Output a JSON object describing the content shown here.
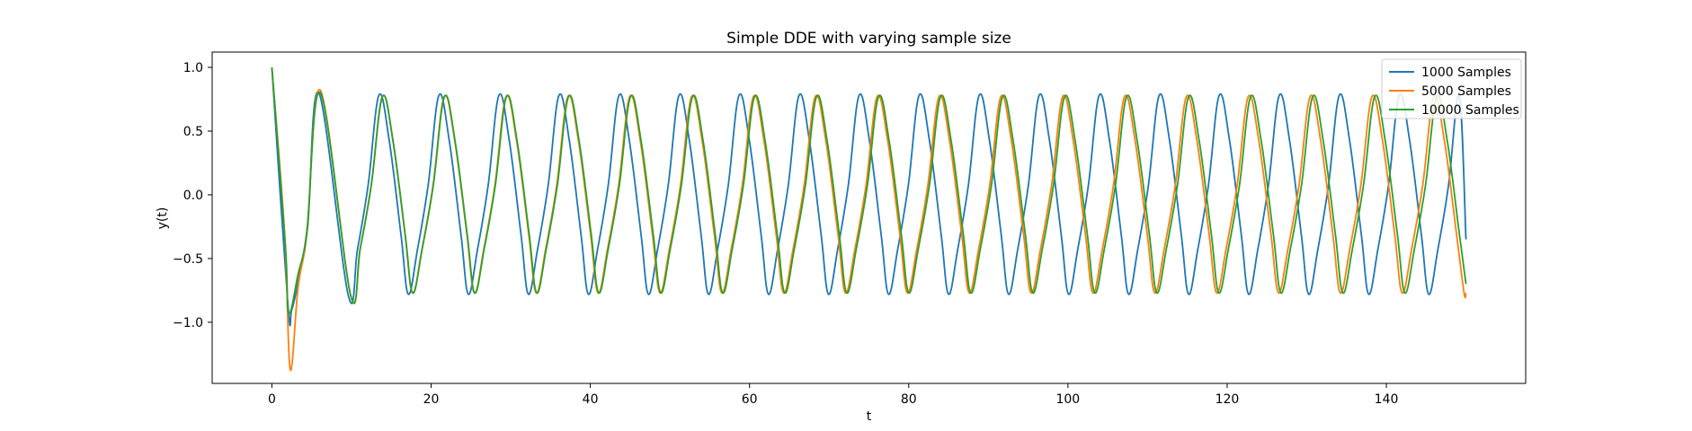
{
  "chart_data": {
    "type": "line",
    "title": "Simple DDE with varying sample size",
    "xlabel": "t",
    "ylabel": "y(t)",
    "xlim": [
      -7.5,
      157.5
    ],
    "ylim": [
      -1.48,
      1.12
    ],
    "xticks": [
      0,
      20,
      40,
      60,
      80,
      100,
      120,
      140
    ],
    "xtick_labels": [
      "0",
      "20",
      "40",
      "60",
      "80",
      "100",
      "120",
      "140"
    ],
    "yticks": [
      -1.0,
      -0.5,
      0.0,
      0.5,
      1.0
    ],
    "ytick_labels": [
      "−1.0",
      "−0.5",
      "0.0",
      "0.5",
      "1.0"
    ],
    "grid": false,
    "legend_position": "top-right",
    "series": [
      {
        "name": "1000 Samples",
        "color": "#1f77b4",
        "start": [
          [
            0,
            1.0
          ],
          [
            2.0,
            -0.85
          ],
          [
            2.5,
            -0.9
          ],
          [
            3.5,
            -0.62
          ],
          [
            4.5,
            -0.25
          ]
        ],
        "first_peak": [
          5.9,
          0.8
        ],
        "first_trough": [
          9.6,
          -0.79
        ],
        "period": 7.54,
        "amplitude_max": 0.78,
        "amplitude_min": -0.78,
        "end": [
          150,
          -0.35
        ]
      },
      {
        "name": "5000 Samples",
        "color": "#ff7f0e",
        "start": [
          [
            0,
            1.0
          ],
          [
            1.6,
            -0.3
          ],
          [
            2.3,
            -1.37
          ],
          [
            3.3,
            -0.72
          ],
          [
            4.4,
            -0.3
          ]
        ],
        "first_peak": [
          6.1,
          0.82
        ],
        "first_trough": [
          9.9,
          -0.79
        ],
        "period": 7.77,
        "amplitude_max": 0.77,
        "amplitude_min": -0.77,
        "end": [
          150,
          -0.77
        ]
      },
      {
        "name": "10000 Samples",
        "color": "#2ca02c",
        "start": [
          [
            0,
            1.0
          ],
          [
            1.7,
            -0.4
          ],
          [
            2.1,
            -0.93
          ],
          [
            3.3,
            -0.62
          ],
          [
            4.4,
            -0.28
          ]
        ],
        "first_peak": [
          6.1,
          0.8
        ],
        "first_trough": [
          9.9,
          -0.79
        ],
        "period": 7.79,
        "amplitude_max": 0.77,
        "amplitude_min": -0.77,
        "end": [
          150,
          -0.7
        ]
      }
    ]
  }
}
